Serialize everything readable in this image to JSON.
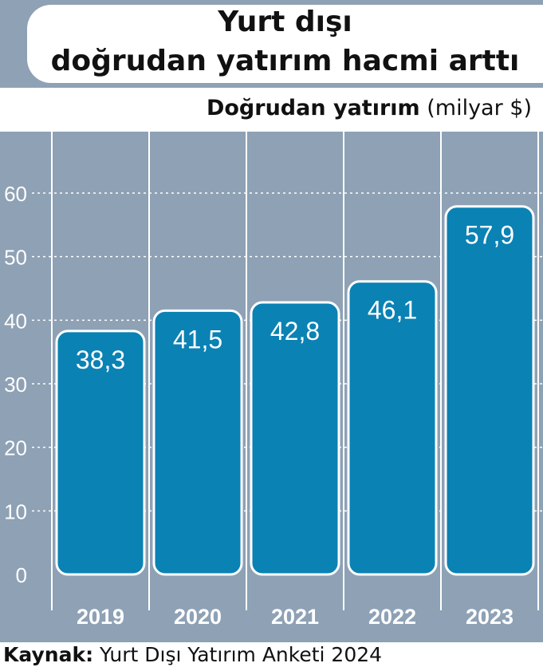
{
  "header": {
    "title_line1": "Yurt dışı",
    "title_line2": "doğrudan yatırım hacmi arttı"
  },
  "subtitle": {
    "bold": "Doğrudan yatırım",
    "unit": " (milyar $)"
  },
  "source": {
    "label": "Kaynak:",
    "text": " Yurt Dışı Yatırım Anketi 2024"
  },
  "colors": {
    "background": "#8ea1b5",
    "bar": "#0a82b4",
    "bar_border": "#ffffff",
    "gridline": "#ffffff"
  },
  "chart_data": {
    "type": "bar",
    "title": "Yurt dışı doğrudan yatırım hacmi arttı",
    "ylabel": "Doğrudan yatırım (milyar $)",
    "categories": [
      "2019",
      "2020",
      "2021",
      "2022",
      "2023"
    ],
    "values": [
      38.3,
      41.5,
      42.8,
      46.1,
      57.9
    ],
    "value_labels": [
      "38,3",
      "41,5",
      "42,8",
      "46,1",
      "57,9"
    ],
    "ylim": [
      0,
      60
    ],
    "yticks": [
      0,
      10,
      20,
      30,
      40,
      50,
      60
    ],
    "grid": true,
    "legend": "none"
  }
}
